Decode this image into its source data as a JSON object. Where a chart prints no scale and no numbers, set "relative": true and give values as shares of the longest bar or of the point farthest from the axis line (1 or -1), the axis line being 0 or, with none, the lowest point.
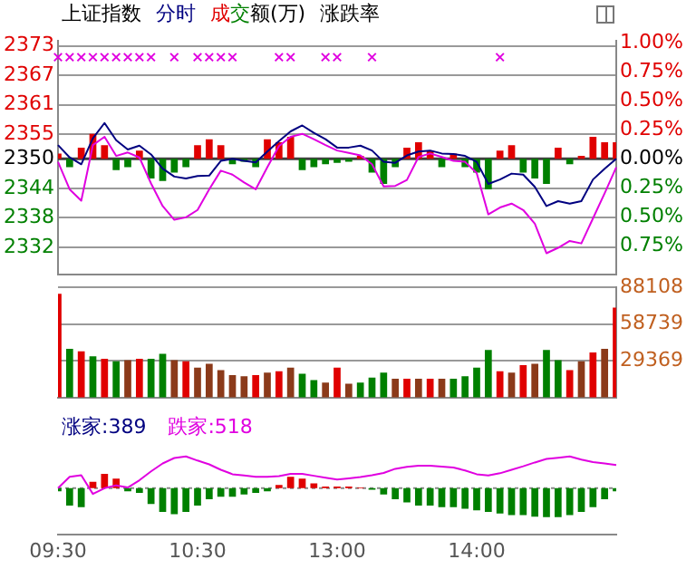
{
  "chart_data": [
    {
      "type": "line",
      "title": "上证指数",
      "subtitle": "成交额(万)",
      "y2label": "涨跌率",
      "legend": "top",
      "tick_labels": "y",
      "grid": "y",
      "categories": [
        null,
        null,
        null,
        null,
        null,
        null,
        null,
        null,
        null,
        null,
        null,
        null,
        null,
        null,
        null,
        null,
        null,
        null,
        null,
        null,
        null,
        null,
        null,
        null,
        null,
        null,
        null,
        null,
        null,
        null,
        null,
        null,
        null,
        null,
        null,
        null,
        null,
        null,
        null,
        null,
        null,
        null,
        null,
        null,
        null,
        null,
        null,
        null,
        null
      ],
      "ylim": [
        2326.5,
        2374
      ],
      "yticks": [
        2332,
        2338,
        2344,
        2350,
        2355,
        2361,
        2367,
        2373
      ],
      "y2lim": [
        -1.0,
        1.02
      ],
      "y2ticks": [
        {
          "value": 1,
          "label": "1.00%"
        },
        {
          "value": 0.75,
          "label": "0.75%"
        },
        {
          "value": 0.5,
          "label": "0.50%"
        },
        {
          "value": 0.25,
          "label": "0.25%"
        },
        {
          "value": 0,
          "label": "0.00%"
        },
        {
          "value": -0.25,
          "label": "0.25%"
        },
        {
          "value": -0.5,
          "label": "0.50%"
        },
        {
          "value": -0.75,
          "label": "0.75%"
        }
      ],
      "ref_lines": [
        {
          "axis": "y",
          "value": 2350,
          "color": "#404040"
        }
      ],
      "series": [
        {
          "type": "bar",
          "values": [
            1.1,
            -1.7,
            2.3,
            5.1,
            2.8,
            -2.3,
            -1.7,
            1.7,
            -4.0,
            -4.5,
            -2.8,
            -1.7,
            2.8,
            4.0,
            2.8,
            -1.1,
            -0.6,
            -1.7,
            4.0,
            3.4,
            4.5,
            -2.3,
            -1.7,
            -1.1,
            -0.8,
            -0.6,
            0.6,
            -2.8,
            -5.1,
            -1.7,
            2.3,
            3.4,
            1.7,
            -1.7,
            1.1,
            -1.7,
            -2.8,
            -6.2,
            1.7,
            2.8,
            -2.8,
            -4.0,
            -5.1,
            2.3,
            -1.1,
            0.6,
            4.5,
            3.4,
            3.4
          ],
          "base": [
            2350,
            2350,
            2350,
            2350,
            2350,
            2350,
            2350,
            2350,
            2350,
            2350,
            2350,
            2350,
            2350,
            2350,
            2350,
            2350,
            2350,
            2350,
            2350,
            2350,
            2350,
            2350,
            2350,
            2350,
            2350,
            2350,
            2350,
            2350,
            2350,
            2350,
            2350,
            2350,
            2350,
            2350,
            2350,
            2350,
            2350,
            2350,
            2350,
            2350,
            2350,
            2350,
            2350,
            2350,
            2350,
            2350,
            2350,
            2350,
            2350
          ],
          "colors": [
            "#e00000",
            "#008000",
            "#e00000",
            "#e00000",
            "#e00000",
            "#008000",
            "#008000",
            "#e00000",
            "#008000",
            "#008000",
            "#008000",
            "#008000",
            "#e00000",
            "#e00000",
            "#e00000",
            "#008000",
            "#008000",
            "#008000",
            "#e00000",
            "#e00000",
            "#e00000",
            "#008000",
            "#008000",
            "#008000",
            "#008000",
            "#008000",
            "#e00000",
            "#008000",
            "#008000",
            "#008000",
            "#e00000",
            "#e00000",
            "#e00000",
            "#008000",
            "#e00000",
            "#008000",
            "#008000",
            "#008000",
            "#e00000",
            "#e00000",
            "#008000",
            "#008000",
            "#008000",
            "#e00000",
            "#008000",
            "#e00000",
            "#e00000",
            "#e00000",
            "#e00000"
          ]
        },
        {
          "color": "#e000e0",
          "marker": "none",
          "values": [
            2349.4,
            2343.8,
            2341.5,
            2352.8,
            2354.5,
            2350.6,
            2351.3,
            2350.3,
            2345.0,
            2340.4,
            2337.6,
            2338.1,
            2339.6,
            2343.8,
            2347.6,
            2346.8,
            2345.2,
            2343.8,
            2348.3,
            2352.6,
            2354.5,
            2355.1,
            2354.0,
            2352.8,
            2351.7,
            2351.2,
            2350.7,
            2348.9,
            2344.4,
            2344.5,
            2345.7,
            2350.4,
            2351.1,
            2350.4,
            2349.6,
            2349.4,
            2347.1,
            2338.7,
            2340.1,
            2340.9,
            2339.6,
            2336.8,
            2330.8,
            2331.9,
            2333.3,
            2332.8,
            2337.9,
            2343.0,
            2348.3
          ]
        },
        {
          "name": "分时",
          "color": "#000080",
          "marker": "none",
          "values": [
            2352.8,
            2350.3,
            2348.9,
            2354.2,
            2357.3,
            2353.8,
            2351.9,
            2352.7,
            2350.9,
            2348.0,
            2346.4,
            2346.0,
            2346.5,
            2346.6,
            2349.6,
            2350.0,
            2349.6,
            2349.3,
            2351.5,
            2353.6,
            2355.6,
            2356.8,
            2355.3,
            2354.0,
            2352.3,
            2352.3,
            2352.7,
            2351.7,
            2349.4,
            2349.2,
            2350.7,
            2351.5,
            2351.7,
            2351.1,
            2351.0,
            2350.6,
            2349.4,
            2344.9,
            2345.8,
            2347.0,
            2346.8,
            2344.3,
            2340.4,
            2341.4,
            2340.9,
            2341.4,
            2345.8,
            2348.0,
            2350.0
          ]
        },
        {
          "type": "scatter",
          "color": "#e000e0",
          "marker": "cross",
          "values": [
            2370.7,
            2370.7,
            2370.7,
            2370.7,
            2370.7,
            2370.7,
            2370.7,
            2370.7,
            2370.7,
            null,
            2370.7,
            null,
            2370.7,
            2370.7,
            2370.7,
            2370.7,
            null,
            null,
            null,
            2370.7,
            2370.7,
            null,
            null,
            2370.7,
            2370.7,
            null,
            null,
            2370.7,
            null,
            null,
            null,
            null,
            null,
            null,
            null,
            null,
            null,
            null,
            2370.7,
            null,
            null,
            null,
            null,
            null,
            null,
            null,
            null,
            null,
            null
          ]
        }
      ]
    },
    {
      "type": "bar",
      "tick_labels": "y",
      "grid": "y",
      "categories": [
        null,
        null,
        null,
        null,
        null,
        null,
        null,
        null,
        null,
        null,
        null,
        null,
        null,
        null,
        null,
        null,
        null,
        null,
        null,
        null,
        null,
        null,
        null,
        null,
        null,
        null,
        null,
        null,
        null,
        null,
        null,
        null,
        null,
        null,
        null,
        null,
        null,
        null,
        null,
        null,
        null,
        null,
        null,
        null,
        null,
        null,
        null,
        null,
        null
      ],
      "ylim": [
        0,
        88108
      ],
      "yticks": [
        29369,
        58739,
        88108
      ],
      "values": [
        83000,
        39000,
        37000,
        33000,
        31000,
        29000,
        30000,
        31000,
        31000,
        35000,
        30000,
        29000,
        24000,
        27000,
        22000,
        18000,
        17000,
        18000,
        20000,
        21000,
        24000,
        19000,
        14000,
        12000,
        24000,
        11000,
        12000,
        16000,
        20000,
        15000,
        15000,
        15000,
        15000,
        15000,
        15000,
        17000,
        24000,
        38000,
        21000,
        20000,
        26000,
        27000,
        38000,
        30000,
        22000,
        29000,
        36000,
        39000,
        72000
      ],
      "colors": [
        "#e00000",
        "#008000",
        "#e00000",
        "#008000",
        "#e00000",
        "#008000",
        "#8b3a1a",
        "#e00000",
        "#008000",
        "#008000",
        "#8b3a1a",
        "#e00000",
        "#8b3a1a",
        "#8b3a1a",
        "#8b3a1a",
        "#8b3a1a",
        "#8b3a1a",
        "#e00000",
        "#8b3a1a",
        "#e00000",
        "#8b3a1a",
        "#008000",
        "#008000",
        "#8b3a1a",
        "#e00000",
        "#8b3a1a",
        "#008000",
        "#008000",
        "#008000",
        "#8b3a1a",
        "#e00000",
        "#8b3a1a",
        "#e00000",
        "#8b3a1a",
        "#008000",
        "#008000",
        "#008000",
        "#008000",
        "#e00000",
        "#8b3a1a",
        "#e00000",
        "#8b3a1a",
        "#008000",
        "#008000",
        "#e00000",
        "#8b3a1a",
        "#e00000",
        "#8b3a1a",
        "#e00000"
      ]
    },
    {
      "type": "bar",
      "relative": true,
      "tick_labels": "x",
      "annotations": [
        "涨家:389",
        "跌家:518"
      ],
      "categories": [
        "09:30",
        null,
        null,
        null,
        null,
        null,
        null,
        null,
        null,
        null,
        null,
        null,
        "10:30",
        null,
        null,
        null,
        null,
        null,
        null,
        null,
        null,
        null,
        null,
        null,
        "13:00",
        null,
        null,
        null,
        null,
        null,
        null,
        null,
        null,
        null,
        null,
        null,
        "14:00",
        null,
        null,
        null,
        null,
        null,
        null,
        null,
        null,
        null,
        null,
        null,
        null
      ],
      "series": [
        {
          "values": [
            -0.1,
            -0.55,
            -0.6,
            0.2,
            0.45,
            0.3,
            -0.1,
            -0.15,
            -0.5,
            -0.75,
            -0.82,
            -0.75,
            -0.55,
            -0.35,
            -0.27,
            -0.27,
            -0.2,
            -0.15,
            -0.1,
            0.1,
            0.36,
            0.3,
            0.15,
            0.05,
            0.05,
            0.05,
            0.02,
            -0.05,
            -0.2,
            -0.35,
            -0.45,
            -0.55,
            -0.55,
            -0.6,
            -0.6,
            -0.65,
            -0.7,
            -0.75,
            -0.8,
            -0.85,
            -0.85,
            -0.9,
            -0.91,
            -0.91,
            -0.85,
            -0.75,
            -0.6,
            -0.35,
            -0.1
          ],
          "colors": [
            "#008000",
            "#008000",
            "#008000",
            "#e00000",
            "#e00000",
            "#e00000",
            "#008000",
            "#008000",
            "#008000",
            "#008000",
            "#008000",
            "#008000",
            "#008000",
            "#008000",
            "#008000",
            "#008000",
            "#008000",
            "#008000",
            "#008000",
            "#e00000",
            "#e00000",
            "#e00000",
            "#e00000",
            "#e00000",
            "#e00000",
            "#e00000",
            "#e00000",
            "#008000",
            "#008000",
            "#008000",
            "#008000",
            "#008000",
            "#008000",
            "#008000",
            "#008000",
            "#008000",
            "#008000",
            "#008000",
            "#008000",
            "#008000",
            "#008000",
            "#008000",
            "#008000",
            "#008000",
            "#008000",
            "#008000",
            "#008000",
            "#008000",
            "#008000"
          ]
        },
        {
          "type": "line",
          "color": "#e000e0",
          "marker": "none",
          "values": [
            0,
            0.36,
            0.41,
            -0.18,
            0,
            0.09,
            0.02,
            0.25,
            0.53,
            0.78,
            0.95,
            1,
            0.87,
            0.75,
            0.58,
            0.44,
            0.4,
            0.36,
            0.36,
            0.38,
            0.45,
            0.45,
            0.39,
            0.33,
            0.27,
            0.31,
            0.35,
            0.41,
            0.48,
            0.61,
            0.67,
            0.71,
            0.71,
            0.68,
            0.65,
            0.56,
            0.44,
            0.4,
            0.47,
            0.58,
            0.69,
            0.81,
            0.92,
            0.96,
            1,
            0.9,
            0.82,
            0.78,
            0.73
          ]
        }
      ]
    }
  ]
}
